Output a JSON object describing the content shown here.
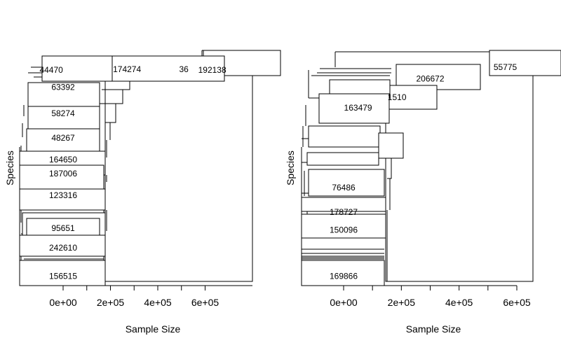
{
  "chart_data": [
    {
      "type": "dendrogram",
      "title": "",
      "xlabel": "Sample Size",
      "ylabel": "Species",
      "xlim": [
        -150000,
        800000
      ],
      "x_ticks": [
        0,
        200000,
        400000,
        600000
      ],
      "x_tick_labels": [
        "0e+00",
        "2e+05",
        "4e+05",
        "6e+05"
      ],
      "grid": false,
      "legend": "none",
      "labeled_nodes": [
        {
          "label": "192138",
          "x": 630000,
          "y": 0.105
        },
        {
          "label": "36",
          "x": 510000,
          "y": 0.1
        },
        {
          "label": "174274",
          "x": 270000,
          "y": 0.1
        },
        {
          "label": "44470",
          "x": -50000,
          "y": 0.105
        },
        {
          "label": "63392",
          "x": 0,
          "y": 0.195
        },
        {
          "label": "58274",
          "x": 0,
          "y": 0.335
        },
        {
          "label": "48267",
          "x": 0,
          "y": 0.465
        },
        {
          "label": "164650",
          "x": 0,
          "y": 0.58
        },
        {
          "label": "187006",
          "x": 0,
          "y": 0.655
        },
        {
          "label": "123316",
          "x": 0,
          "y": 0.77
        },
        {
          "label": "95651",
          "x": 0,
          "y": 0.945
        },
        {
          "label": "242610",
          "x": 0,
          "y": 1.05
        },
        {
          "label": "156515",
          "x": 0,
          "y": 1.2
        }
      ]
    },
    {
      "type": "dendrogram",
      "title": "",
      "xlabel": "Sample Size",
      "ylabel": "Species",
      "xlim": [
        -150000,
        650000
      ],
      "x_ticks": [
        0,
        200000,
        400000,
        600000
      ],
      "x_tick_labels": [
        "0e+00",
        "2e+05",
        "4e+05",
        "6e+05"
      ],
      "grid": false,
      "legend": "none",
      "labeled_nodes": [
        {
          "label": "55775",
          "x": 560000,
          "y": 0.09
        },
        {
          "label": "206672",
          "x": 300000,
          "y": 0.15
        },
        {
          "label": "1510",
          "x": 185000,
          "y": 0.25
        },
        {
          "label": "163479",
          "x": 50000,
          "y": 0.305
        },
        {
          "label": "76486",
          "x": 0,
          "y": 0.73
        },
        {
          "label": "178727",
          "x": 0,
          "y": 0.86
        },
        {
          "label": "150096",
          "x": 0,
          "y": 0.955
        },
        {
          "label": "169866",
          "x": 0,
          "y": 1.2
        }
      ]
    }
  ]
}
